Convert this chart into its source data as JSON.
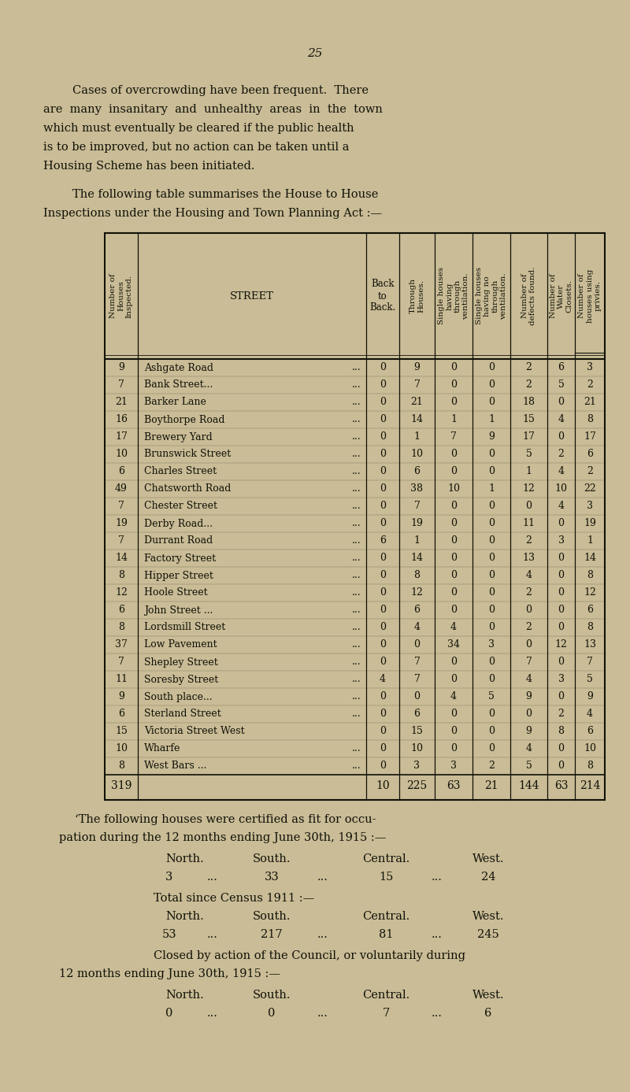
{
  "bg_color": "#c9bc96",
  "page_number": "25",
  "intro_text_line1": "        Cases of overcrowding have been frequent.  There",
  "intro_text_line2": "are  many  insanitary  and  unhealthy  areas  in  the  town",
  "intro_text_line3": "which must eventually be cleared if the public health",
  "intro_text_line4": "is to be improved, but no action can be taken until a",
  "intro_text_line5": "Housing Scheme has been initiated.",
  "intro2_line1": "        The following table summarises the House to House",
  "intro2_line2": "Inspections under the Housing and Town Planning Act :—",
  "col_headers": [
    "Number of\nHouses\nInspected.",
    "STREET",
    "Back\nto\nBack.",
    "Through\nHouses.",
    "Single houses\nhaving\nthrough\nventilation.",
    "Single houses\nhaving no\nthrough\nventilation.",
    "Number of\ndefects found.",
    "Number of\nWater\nClosets.",
    "Number of\nhouses using\nprivies."
  ],
  "rows": [
    [
      9,
      "Ashgate Road",
      "...",
      0,
      9,
      0,
      0,
      2,
      6,
      3
    ],
    [
      7,
      "Bank Street...",
      "...",
      0,
      7,
      0,
      0,
      2,
      5,
      2
    ],
    [
      21,
      "Barker Lane",
      "...",
      0,
      21,
      0,
      0,
      18,
      0,
      21
    ],
    [
      16,
      "Boythorpe Road",
      "...",
      0,
      14,
      1,
      1,
      15,
      4,
      8
    ],
    [
      17,
      "Brewery Yard",
      "...",
      0,
      1,
      7,
      9,
      17,
      0,
      17
    ],
    [
      10,
      "Brunswick Street",
      "...",
      0,
      10,
      0,
      0,
      5,
      2,
      6
    ],
    [
      6,
      "Charles Street",
      "...",
      0,
      6,
      0,
      0,
      1,
      4,
      2
    ],
    [
      49,
      "Chatsworth Road",
      "...",
      0,
      38,
      10,
      1,
      12,
      10,
      22
    ],
    [
      7,
      "Chester Street",
      "...",
      0,
      7,
      0,
      0,
      0,
      4,
      3
    ],
    [
      19,
      "Derby Road...",
      "...",
      0,
      19,
      0,
      0,
      11,
      0,
      19
    ],
    [
      7,
      "Durrant Road",
      "...",
      6,
      1,
      0,
      0,
      2,
      3,
      1
    ],
    [
      14,
      "Factory Street",
      "...",
      0,
      14,
      0,
      0,
      13,
      0,
      14
    ],
    [
      8,
      "Hipper Street",
      "...",
      0,
      8,
      0,
      0,
      4,
      0,
      8
    ],
    [
      12,
      "Hoole Street",
      "...",
      0,
      12,
      0,
      0,
      2,
      0,
      12
    ],
    [
      6,
      "John Street ...",
      "...",
      0,
      6,
      0,
      0,
      0,
      0,
      6
    ],
    [
      8,
      "Lordsmill Street",
      "...",
      0,
      4,
      4,
      0,
      2,
      0,
      8
    ],
    [
      37,
      "Low Pavement",
      "...",
      0,
      0,
      34,
      3,
      0,
      12,
      13
    ],
    [
      7,
      "Shepley Street",
      "...",
      0,
      7,
      0,
      0,
      7,
      0,
      7
    ],
    [
      11,
      "Soresby Street",
      "...",
      4,
      7,
      0,
      0,
      4,
      3,
      5
    ],
    [
      9,
      "South place...",
      "...",
      0,
      0,
      4,
      5,
      9,
      0,
      9
    ],
    [
      6,
      "Sterland Street",
      "...",
      0,
      6,
      0,
      0,
      0,
      2,
      4
    ],
    [
      15,
      "Victoria Street West",
      "",
      0,
      15,
      0,
      0,
      9,
      8,
      6
    ],
    [
      10,
      "Wharfe",
      "...",
      0,
      10,
      0,
      0,
      4,
      0,
      10
    ],
    [
      8,
      "West Bars ...",
      "...",
      0,
      3,
      3,
      2,
      5,
      0,
      8
    ]
  ],
  "totals": [
    319,
    10,
    225,
    63,
    21,
    144,
    63,
    214
  ],
  "text_color": "#111108",
  "line_color": "#111108"
}
